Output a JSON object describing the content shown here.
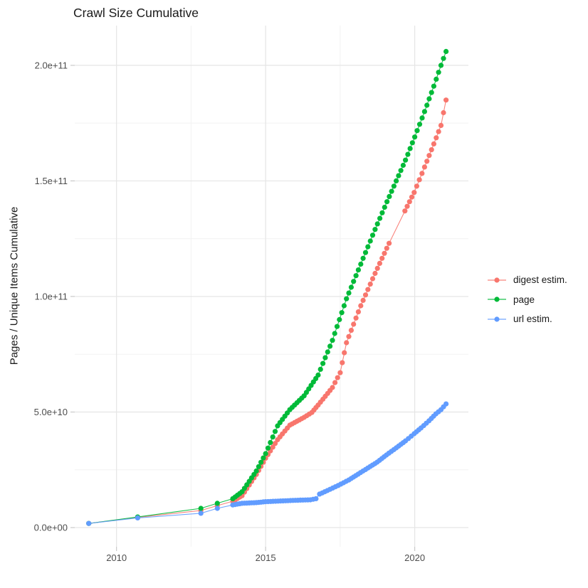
{
  "title": "Crawl Size Cumulative",
  "chart_data": {
    "type": "line",
    "title": "Crawl Size Cumulative",
    "xlabel": "",
    "ylabel": "Pages / Unique Items Cumulative",
    "xlim": [
      2008.6,
      2021.8
    ],
    "ylim": [
      -8300000000.0,
      217200000000.0
    ],
    "grid": true,
    "legend_position": "right",
    "x_ticks": {
      "major": [
        2010,
        2015,
        2020
      ],
      "minor": [
        2012.5,
        2017.5
      ],
      "labels": [
        "2010",
        "2015",
        "2020"
      ]
    },
    "y_ticks": {
      "major": [
        0,
        50000000000.0,
        100000000000.0,
        150000000000.0,
        200000000000.0
      ],
      "minor": [
        25000000000.0,
        75000000000.0,
        125000000000.0,
        175000000000.0
      ],
      "labels": [
        "0.0e+00",
        "5.0e+10",
        "1.0e+11",
        "1.5e+11",
        "2.0e+11"
      ]
    },
    "series": [
      {
        "name": "digest estim.",
        "color": "#F8766D",
        "points": [
          [
            2009.07,
            1800000000.0
          ],
          [
            2010.71,
            4400000000.0
          ],
          [
            2012.83,
            7400000000.0
          ],
          [
            2013.38,
            9500000000.0
          ],
          [
            2013.9,
            11400000000.0
          ],
          [
            2014.21,
            13800000000.0
          ],
          [
            2014.69,
            23000000000.0
          ],
          [
            2015.0,
            30000000000.0
          ],
          [
            2015.4,
            38000000000.0
          ],
          [
            2015.81,
            44300000000.0
          ],
          [
            2016.29,
            47700000000.0
          ],
          [
            2016.55,
            49800000000.0
          ],
          [
            2016.76,
            53000000000.0
          ],
          [
            2017.24,
            60600000000.0
          ],
          [
            2017.5,
            67000000000.0
          ],
          [
            2017.71,
            80000000000.0
          ],
          [
            2018.19,
            96000000000.0
          ],
          [
            2018.67,
            110000000000.0
          ],
          [
            2019.14,
            123000000000.0
          ],
          [
            2019.67,
            137000000000.0
          ],
          [
            2019.98,
            145000000000.0
          ],
          [
            2020.33,
            156000000000.0
          ],
          [
            2020.64,
            166000000000.0
          ],
          [
            2020.88,
            174000000000.0
          ],
          [
            2021.05,
            185000000000.0
          ]
        ]
      },
      {
        "name": "page",
        "color": "#00BA38",
        "points": [
          [
            2009.07,
            1800000000.0
          ],
          [
            2010.71,
            4600000000.0
          ],
          [
            2012.83,
            8300000000.0
          ],
          [
            2013.38,
            10500000000.0
          ],
          [
            2013.9,
            12500000000.0
          ],
          [
            2014.21,
            15500000000.0
          ],
          [
            2014.69,
            24500000000.0
          ],
          [
            2015.0,
            32000000000.0
          ],
          [
            2015.4,
            44000000000.0
          ],
          [
            2015.81,
            51000000000.0
          ],
          [
            2016.29,
            57000000000.0
          ],
          [
            2016.76,
            66000000000.0
          ],
          [
            2017.24,
            81000000000.0
          ],
          [
            2017.71,
            99000000000.0
          ],
          [
            2018.19,
            114000000000.0
          ],
          [
            2018.67,
            129000000000.0
          ],
          [
            2019.07,
            141000000000.0
          ],
          [
            2019.38,
            150000000000.0
          ],
          [
            2019.69,
            159000000000.0
          ],
          [
            2020.0,
            169000000000.0
          ],
          [
            2020.33,
            180000000000.0
          ],
          [
            2020.64,
            191000000000.0
          ],
          [
            2020.88,
            200000000000.0
          ],
          [
            2021.05,
            206000000000.0
          ]
        ]
      },
      {
        "name": "url estim.",
        "color": "#619CFF",
        "points": [
          [
            2009.07,
            1800000000.0
          ],
          [
            2010.71,
            4200000000.0
          ],
          [
            2012.83,
            6200000000.0
          ],
          [
            2013.38,
            8300000000.0
          ],
          [
            2013.9,
            9800000000.0
          ],
          [
            2014.21,
            10500000000.0
          ],
          [
            2014.69,
            10800000000.0
          ],
          [
            2015.0,
            11200000000.0
          ],
          [
            2015.5,
            11500000000.0
          ],
          [
            2016.0,
            11800000000.0
          ],
          [
            2016.5,
            12000000000.0
          ],
          [
            2016.69,
            12500000000.0
          ],
          [
            2016.81,
            14500000000.0
          ],
          [
            2017.07,
            16000000000.0
          ],
          [
            2017.43,
            18200000000.0
          ],
          [
            2017.79,
            20600000000.0
          ],
          [
            2018.1,
            23100000000.0
          ],
          [
            2018.43,
            25800000000.0
          ],
          [
            2018.74,
            28300000000.0
          ],
          [
            2019.05,
            31400000000.0
          ],
          [
            2019.38,
            34500000000.0
          ],
          [
            2019.69,
            37500000000.0
          ],
          [
            2019.98,
            40600000000.0
          ],
          [
            2020.21,
            43100000000.0
          ],
          [
            2020.48,
            46200000000.0
          ],
          [
            2020.71,
            49200000000.0
          ],
          [
            2020.88,
            51000000000.0
          ],
          [
            2021.05,
            53500000000.0
          ]
        ]
      }
    ],
    "legend": [
      "digest estim.",
      "page",
      "url estim."
    ]
  }
}
